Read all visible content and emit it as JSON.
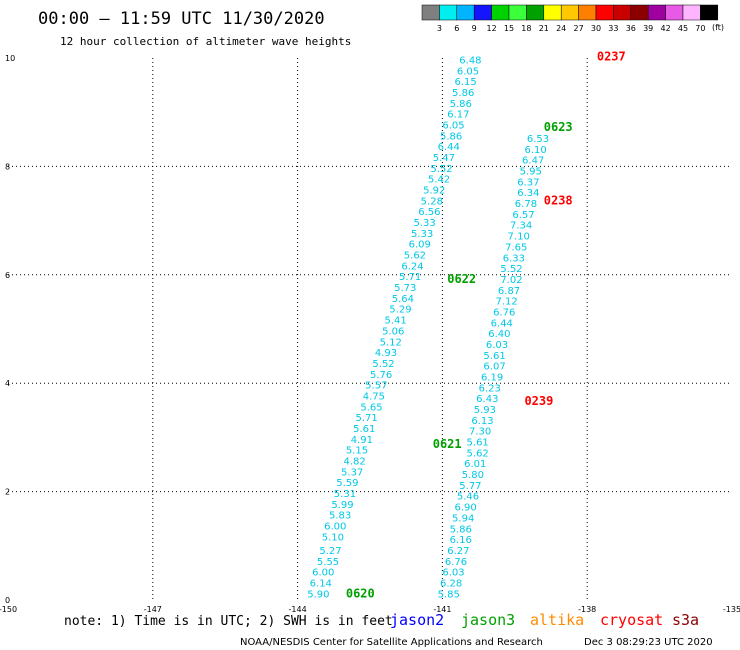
{
  "header": {
    "title": "00:00 – 11:59 UTC 11/30/2020",
    "subtitle": "12 hour collection of altimeter wave heights"
  },
  "legend": {
    "unit": "(ft)",
    "labels": [
      "3",
      "6",
      "9",
      "12",
      "15",
      "18",
      "21",
      "24",
      "27",
      "30",
      "33",
      "36",
      "39",
      "42",
      "45",
      "70"
    ],
    "colors": [
      "#7f7f7f",
      "#00eeee",
      "#00b4ff",
      "#1414ff",
      "#00d200",
      "#3cff3c",
      "#00a000",
      "#ffff00",
      "#ffc800",
      "#ff8000",
      "#ff0000",
      "#c80000",
      "#8c0000",
      "#a000a0",
      "#e65ae6",
      "#ffb4ff",
      "#000000"
    ]
  },
  "footer": {
    "note": "note: 1) Time is in UTC; 2) SWH is in feet",
    "credit": "NOAA/NESDIS Center for Satellite Applications and Research",
    "timestamp": "Dec  3 08:29:23 UTC 2020",
    "satellites": [
      {
        "name": "jason2",
        "color": "#0000ff"
      },
      {
        "name": "jason3",
        "color": "#00a000"
      },
      {
        "name": "altika",
        "color": "#ff8c00"
      },
      {
        "name": "cryosat",
        "color": "#ff0000"
      },
      {
        "name": "s3a",
        "color": "#8b0000"
      }
    ]
  },
  "chart_data": {
    "type": "scatter",
    "xlim": [
      -150,
      -135
    ],
    "ylim": [
      0,
      10
    ],
    "x_ticks": [
      "-150",
      "-147",
      "-144",
      "-141",
      "-138",
      "-135"
    ],
    "y_ticks": [
      "0",
      "2",
      "4",
      "6",
      "8",
      "10"
    ],
    "grid": true,
    "value_color": "#00c8e6",
    "pass_labels": [
      {
        "text": "0620",
        "x": -143.0,
        "y": 0.05,
        "color": "#00a000"
      },
      {
        "text": "0621",
        "x": -141.2,
        "y": 2.8,
        "color": "#00a000"
      },
      {
        "text": "0622",
        "x": -140.9,
        "y": 5.85,
        "color": "#00a000"
      },
      {
        "text": "0623",
        "x": -138.9,
        "y": 8.65,
        "color": "#00a000"
      },
      {
        "text": "0237",
        "x": -137.8,
        "y": 9.95,
        "color": "#ff0000"
      },
      {
        "text": "0238",
        "x": -138.9,
        "y": 7.3,
        "color": "#ff0000"
      },
      {
        "text": "0239",
        "x": -139.3,
        "y": 3.6,
        "color": "#ff0000"
      }
    ],
    "series": [
      {
        "values": [
          {
            "x": -143.8,
            "y": 0.05,
            "v": "5.90"
          },
          {
            "x": -143.75,
            "y": 0.25,
            "v": "6.14"
          },
          {
            "x": -143.7,
            "y": 0.45,
            "v": "6.00"
          },
          {
            "x": -143.6,
            "y": 0.65,
            "v": "5.55"
          },
          {
            "x": -143.55,
            "y": 0.85,
            "v": "5.27"
          },
          {
            "x": -143.5,
            "y": 1.1,
            "v": "5.10"
          },
          {
            "x": -143.45,
            "y": 1.3,
            "v": "6.00"
          },
          {
            "x": -143.35,
            "y": 1.5,
            "v": "5.83"
          },
          {
            "x": -143.3,
            "y": 1.7,
            "v": "5.99"
          },
          {
            "x": -143.25,
            "y": 1.9,
            "v": "5.31"
          },
          {
            "x": -143.2,
            "y": 2.1,
            "v": "5.59"
          },
          {
            "x": -143.1,
            "y": 2.3,
            "v": "5.37"
          },
          {
            "x": -143.05,
            "y": 2.5,
            "v": "4.82"
          },
          {
            "x": -143.0,
            "y": 2.7,
            "v": "5.15"
          },
          {
            "x": -142.9,
            "y": 2.9,
            "v": "4.91"
          },
          {
            "x": -142.85,
            "y": 3.1,
            "v": "5.61"
          },
          {
            "x": -142.8,
            "y": 3.3,
            "v": "5.71"
          },
          {
            "x": -142.7,
            "y": 3.5,
            "v": "5.65"
          },
          {
            "x": -142.65,
            "y": 3.7,
            "v": "4.75"
          },
          {
            "x": -142.6,
            "y": 3.9,
            "v": "5.57"
          },
          {
            "x": -142.5,
            "y": 4.1,
            "v": "5.76"
          },
          {
            "x": -142.45,
            "y": 4.3,
            "v": "5.52"
          },
          {
            "x": -142.4,
            "y": 4.5,
            "v": "4.93"
          },
          {
            "x": -142.3,
            "y": 4.7,
            "v": "5.12"
          },
          {
            "x": -142.25,
            "y": 4.9,
            "v": "5.06"
          },
          {
            "x": -142.2,
            "y": 5.1,
            "v": "5.41"
          },
          {
            "x": -142.1,
            "y": 5.3,
            "v": "5.29"
          },
          {
            "x": -142.05,
            "y": 5.5,
            "v": "5.64"
          },
          {
            "x": -142.0,
            "y": 5.7,
            "v": "5.73"
          },
          {
            "x": -141.9,
            "y": 5.9,
            "v": "5.71"
          },
          {
            "x": -141.85,
            "y": 6.1,
            "v": "6.24"
          },
          {
            "x": -141.8,
            "y": 6.3,
            "v": "5.62"
          },
          {
            "x": -141.7,
            "y": 6.5,
            "v": "6.09"
          },
          {
            "x": -141.65,
            "y": 6.7,
            "v": "5.33"
          },
          {
            "x": -141.6,
            "y": 6.9,
            "v": "5.33"
          },
          {
            "x": -141.5,
            "y": 7.1,
            "v": "6.56"
          },
          {
            "x": -141.45,
            "y": 7.3,
            "v": "5.28"
          },
          {
            "x": -141.4,
            "y": 7.5,
            "v": "5.92"
          },
          {
            "x": -141.3,
            "y": 7.7,
            "v": "5.42"
          },
          {
            "x": -141.25,
            "y": 7.9,
            "v": "5.52"
          },
          {
            "x": -141.2,
            "y": 8.1,
            "v": "5.47"
          },
          {
            "x": -141.1,
            "y": 8.3,
            "v": "6.44"
          },
          {
            "x": -141.05,
            "y": 8.5,
            "v": "5.86"
          },
          {
            "x": -141.0,
            "y": 8.7,
            "v": "6.05"
          },
          {
            "x": -140.9,
            "y": 8.9,
            "v": "6.17"
          },
          {
            "x": -140.85,
            "y": 9.1,
            "v": "5.86"
          },
          {
            "x": -140.8,
            "y": 9.3,
            "v": "5.86"
          },
          {
            "x": -140.75,
            "y": 9.5,
            "v": "6.15"
          },
          {
            "x": -140.7,
            "y": 9.7,
            "v": "6.05"
          },
          {
            "x": -140.65,
            "y": 9.9,
            "v": "6.48"
          }
        ]
      },
      {
        "values": [
          {
            "x": -141.1,
            "y": 0.05,
            "v": "5.85"
          },
          {
            "x": -141.05,
            "y": 0.25,
            "v": "6.28"
          },
          {
            "x": -141.0,
            "y": 0.45,
            "v": "6.03"
          },
          {
            "x": -140.95,
            "y": 0.65,
            "v": "6.76"
          },
          {
            "x": -140.9,
            "y": 0.85,
            "v": "6.27"
          },
          {
            "x": -140.85,
            "y": 1.05,
            "v": "6.16"
          },
          {
            "x": -140.85,
            "y": 1.25,
            "v": "5.86"
          },
          {
            "x": -140.8,
            "y": 1.45,
            "v": "5.94"
          },
          {
            "x": -140.75,
            "y": 1.65,
            "v": "6.90"
          },
          {
            "x": -140.7,
            "y": 1.85,
            "v": "5.46"
          },
          {
            "x": -140.65,
            "y": 2.05,
            "v": "5.77"
          },
          {
            "x": -140.6,
            "y": 2.25,
            "v": "5.80"
          },
          {
            "x": -140.55,
            "y": 2.45,
            "v": "6.01"
          },
          {
            "x": -140.5,
            "y": 2.65,
            "v": "5.62"
          },
          {
            "x": -140.5,
            "y": 2.85,
            "v": "5.61"
          },
          {
            "x": -140.45,
            "y": 3.05,
            "v": "7.30"
          },
          {
            "x": -140.4,
            "y": 3.25,
            "v": "6.13"
          },
          {
            "x": -140.35,
            "y": 3.45,
            "v": "5.93"
          },
          {
            "x": -140.3,
            "y": 3.65,
            "v": "6.43"
          },
          {
            "x": -140.25,
            "y": 3.85,
            "v": "6.23"
          },
          {
            "x": -140.2,
            "y": 4.05,
            "v": "6.19"
          },
          {
            "x": -140.15,
            "y": 4.25,
            "v": "6.07"
          },
          {
            "x": -140.15,
            "y": 4.45,
            "v": "5.61"
          },
          {
            "x": -140.1,
            "y": 4.65,
            "v": "6.03"
          },
          {
            "x": -140.05,
            "y": 4.85,
            "v": "6.40"
          },
          {
            "x": -140.0,
            "y": 5.05,
            "v": "6.44"
          },
          {
            "x": -139.95,
            "y": 5.25,
            "v": "6.76"
          },
          {
            "x": -139.9,
            "y": 5.45,
            "v": "7.12"
          },
          {
            "x": -139.85,
            "y": 5.65,
            "v": "6.87"
          },
          {
            "x": -139.8,
            "y": 5.85,
            "v": "7.02"
          },
          {
            "x": -139.8,
            "y": 6.05,
            "v": "5.52"
          },
          {
            "x": -139.75,
            "y": 6.25,
            "v": "6.33"
          },
          {
            "x": -139.7,
            "y": 6.45,
            "v": "7.65"
          },
          {
            "x": -139.65,
            "y": 6.65,
            "v": "7.10"
          },
          {
            "x": -139.6,
            "y": 6.85,
            "v": "7.34"
          },
          {
            "x": -139.55,
            "y": 7.05,
            "v": "6.57"
          },
          {
            "x": -139.5,
            "y": 7.25,
            "v": "6.78"
          },
          {
            "x": -139.45,
            "y": 7.45,
            "v": "6.34"
          },
          {
            "x": -139.45,
            "y": 7.65,
            "v": "6.37"
          },
          {
            "x": -139.4,
            "y": 7.85,
            "v": "5.95"
          },
          {
            "x": -139.35,
            "y": 8.05,
            "v": "6.47"
          },
          {
            "x": -139.3,
            "y": 8.25,
            "v": "6.10"
          },
          {
            "x": -139.25,
            "y": 8.45,
            "v": "6.53"
          }
        ]
      }
    ]
  }
}
